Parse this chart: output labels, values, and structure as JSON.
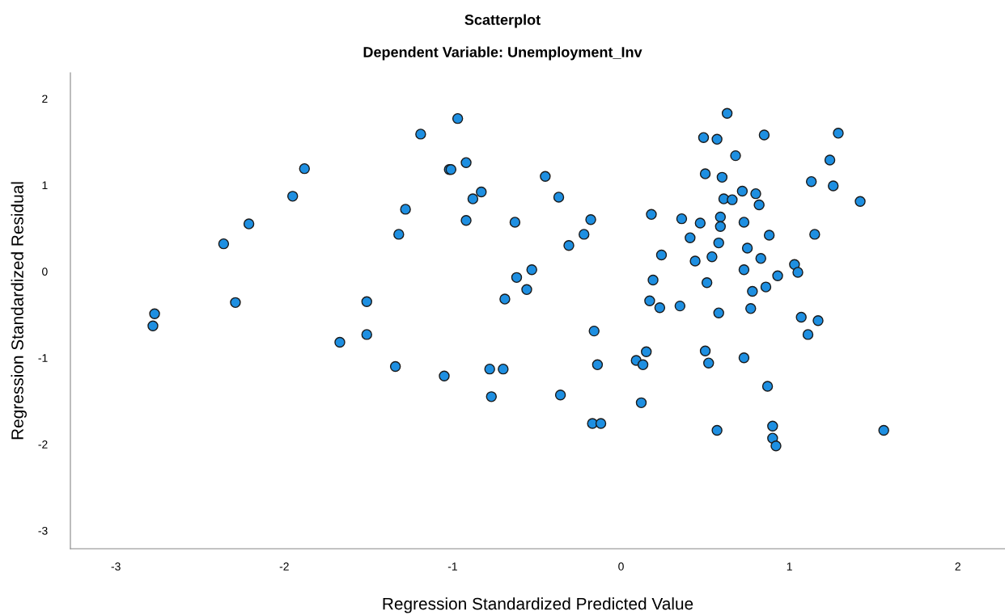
{
  "chart_data": {
    "type": "scatter",
    "title": "Scatterplot",
    "subtitle": "Dependent Variable: Unemployment_Inv",
    "xlabel": "Regression Standardized Predicted Value",
    "ylabel": "Regression Standardized Residual",
    "xlim": [
      -3.27,
      2.28
    ],
    "ylim": [
      -3.21,
      2.3
    ],
    "xticks": [
      -3,
      -2,
      -1,
      0,
      1,
      2
    ],
    "yticks": [
      -3,
      -2,
      -1,
      0,
      1,
      2
    ],
    "grid": false,
    "marker": "circle",
    "series": [
      {
        "color": "#1e8fe1",
        "x": [
          -1.88,
          -1.95,
          -2.21,
          -2.36,
          -2.29,
          -2.77,
          -2.78,
          -1.51,
          -1.51,
          -1.67,
          -0.97,
          -1.19,
          -1.02,
          -1.01,
          -0.92,
          -0.83,
          -0.88,
          -1.28,
          -1.32,
          -0.92,
          -0.63,
          -0.45,
          -0.37,
          -0.18,
          -0.22,
          -0.31,
          -0.53,
          -0.62,
          -0.56,
          -0.69,
          0.18,
          0.19,
          0.17,
          -0.16,
          0.15,
          0.09,
          0.13,
          -0.14,
          -1.34,
          -1.05,
          -0.78,
          -0.7,
          -0.77,
          -0.36,
          0.12,
          -0.17,
          -0.12,
          0.63,
          0.49,
          0.57,
          0.85,
          1.29,
          0.68,
          1.24,
          0.5,
          0.6,
          1.13,
          1.26,
          0.72,
          0.8,
          0.61,
          0.66,
          0.82,
          1.42,
          0.36,
          0.47,
          0.59,
          0.59,
          0.73,
          0.41,
          0.88,
          1.15,
          0.58,
          0.75,
          0.24,
          0.44,
          0.54,
          0.83,
          1.03,
          1.05,
          0.73,
          0.93,
          0.51,
          0.86,
          0.78,
          0.23,
          0.35,
          0.58,
          0.77,
          1.07,
          1.17,
          1.11,
          0.5,
          0.52,
          0.73,
          0.87,
          0.57,
          0.9,
          0.9,
          0.92,
          1.56
        ],
        "values": [
          1.19,
          0.87,
          0.55,
          0.32,
          -0.36,
          -0.49,
          -0.63,
          -0.35,
          -0.73,
          -0.82,
          1.77,
          1.59,
          1.18,
          1.18,
          1.26,
          0.92,
          0.84,
          0.72,
          0.43,
          0.59,
          0.57,
          1.1,
          0.86,
          0.6,
          0.43,
          0.3,
          0.02,
          -0.07,
          -0.21,
          -0.32,
          0.66,
          -0.1,
          -0.34,
          -0.69,
          -0.93,
          -1.03,
          -1.08,
          -1.08,
          -1.1,
          -1.21,
          -1.13,
          -1.13,
          -1.45,
          -1.43,
          -1.52,
          -1.76,
          -1.76,
          1.83,
          1.55,
          1.53,
          1.58,
          1.6,
          1.34,
          1.29,
          1.13,
          1.09,
          1.04,
          0.99,
          0.93,
          0.9,
          0.84,
          0.83,
          0.77,
          0.81,
          0.61,
          0.56,
          0.63,
          0.52,
          0.57,
          0.39,
          0.42,
          0.43,
          0.33,
          0.27,
          0.19,
          0.12,
          0.17,
          0.15,
          0.08,
          -0.01,
          0.02,
          -0.05,
          -0.13,
          -0.18,
          -0.23,
          -0.42,
          -0.4,
          -0.48,
          -0.43,
          -0.53,
          -0.57,
          -0.73,
          -0.92,
          -1.06,
          -1.0,
          -1.33,
          -1.84,
          -1.79,
          -1.93,
          -2.02,
          -1.84
        ]
      }
    ]
  }
}
